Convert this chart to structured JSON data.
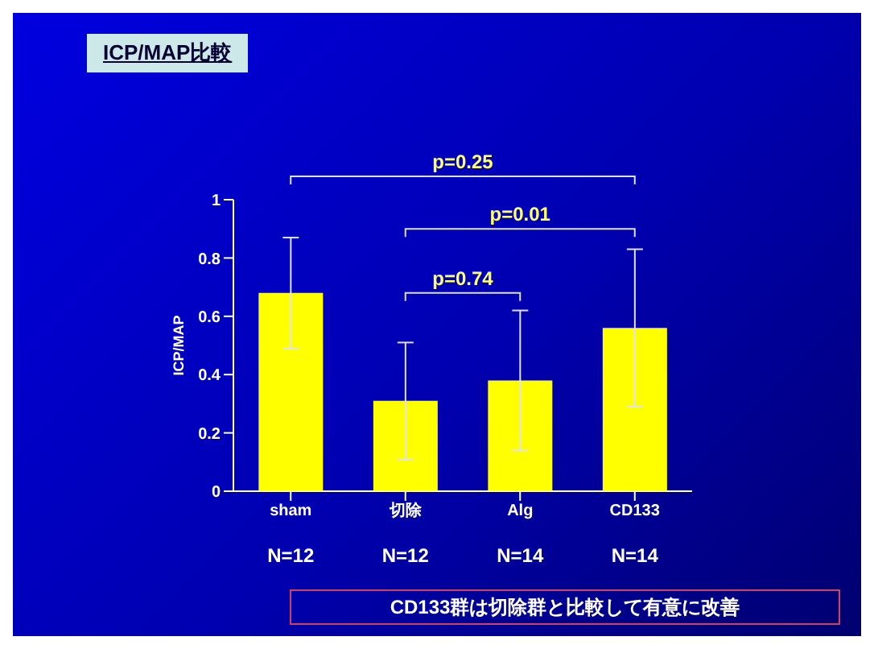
{
  "chart_data": {
    "type": "bar",
    "title": "ICP/MAP比較",
    "ylabel": "ICP/MAP",
    "categories": [
      "sham",
      "切除",
      "Alg",
      "CD133"
    ],
    "values": [
      0.68,
      0.31,
      0.38,
      0.56
    ],
    "errors": [
      0.19,
      0.2,
      0.24,
      0.27
    ],
    "color": "#ffff00",
    "ylim": [
      0,
      1
    ],
    "yticks": [
      0,
      0.2,
      0.4,
      0.6,
      0.8,
      1
    ],
    "grid": false,
    "legend": false,
    "annotations": [
      "p=0.25",
      "p=0.01",
      "p=0.74",
      "N=12",
      "N=12",
      "N=14",
      "N=14",
      "CD133群は切除群と比較して有意に改善"
    ]
  }
}
